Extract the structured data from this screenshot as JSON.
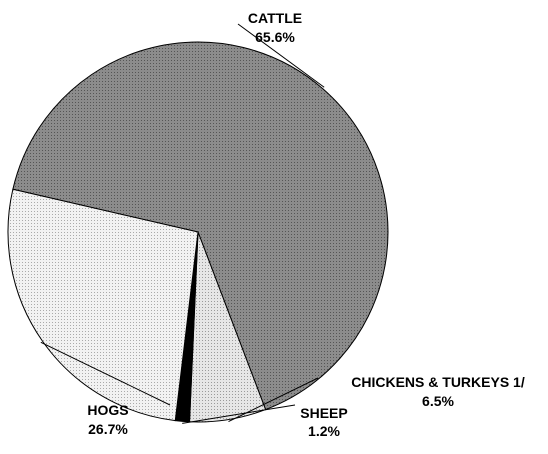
{
  "chart_data": {
    "type": "pie",
    "slices": [
      {
        "name": "CATTLE",
        "value": 65.6,
        "label": "65.6%",
        "fill": "#8c8c8c"
      },
      {
        "name": "CHICKENS & TURKEYS 1/",
        "value": 6.5,
        "label": "6.5%",
        "fill": "#d9d9d9"
      },
      {
        "name": "SHEEP",
        "value": 1.2,
        "label": "1.2%",
        "fill": "#000000"
      },
      {
        "name": "HOGS",
        "value": 26.7,
        "label": "26.7%",
        "fill": "#e9e9e9"
      }
    ],
    "start_angle_deg": 193,
    "direction": "clockwise",
    "legend": "none"
  }
}
